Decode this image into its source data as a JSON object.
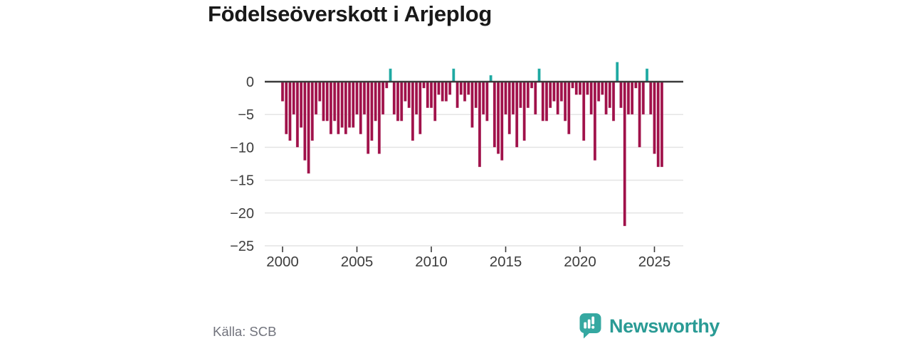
{
  "title": "Födelseöverskott i Arjeplog",
  "footer": {
    "source": "Källa: SCB",
    "logo_text": "Newsworthy"
  },
  "colors": {
    "negative_bar": "#a0114a",
    "positive_bar": "#1ea9a2",
    "axis_line": "#3a3a3a",
    "grid_line": "#e4e4e4",
    "tick_text": "#3d3d3d",
    "title_text": "#191919",
    "source_text": "#71737c",
    "logo_teal": "#2a9b95",
    "logo_icon": "#35a8a1"
  },
  "chart_data": {
    "type": "bar",
    "title": "Födelseöverskott i Arjeplog",
    "frequency": "quarterly",
    "start": "2000Q1",
    "end": "2025Q3",
    "values": [
      -3,
      -8,
      -9,
      -5,
      -10,
      -7,
      -12,
      -14,
      -9,
      -5,
      -3,
      -6,
      -6,
      -8,
      -6,
      -8,
      -7,
      -8,
      -7,
      -7,
      -5,
      -8,
      -5,
      -11,
      -9,
      -6,
      -11,
      -5,
      -1,
      2,
      -5,
      -6,
      -6,
      -3,
      -4,
      -9,
      -5,
      -8,
      -1,
      -4,
      -4,
      -6,
      -2,
      -3,
      -3,
      -2,
      2,
      -4,
      -2,
      -3,
      -2,
      -7,
      -4,
      -13,
      -5,
      -6,
      1,
      -10,
      -11,
      -12,
      -5,
      -8,
      -5,
      -10,
      -4,
      -9,
      -4,
      -1,
      -5,
      2,
      -6,
      -6,
      -4,
      -3,
      -5,
      -3,
      -6,
      -8,
      -1,
      -2,
      -2,
      -9,
      -2,
      -5,
      -12,
      -3,
      -2,
      -5,
      -4,
      -6,
      3,
      -4,
      -22,
      -5,
      -5,
      -1,
      -10,
      -5,
      2,
      -5,
      -11,
      -13,
      -13
    ],
    "yticks": [
      0,
      -5,
      -10,
      -15,
      -20,
      -25
    ],
    "ytick_labels": [
      "0",
      "−5",
      "−10",
      "−15",
      "−20",
      "−25"
    ],
    "xticks": [
      2000,
      2005,
      2010,
      2015,
      2020,
      2025
    ],
    "ylim": [
      -25,
      3
    ],
    "grid": true,
    "legend": null
  }
}
